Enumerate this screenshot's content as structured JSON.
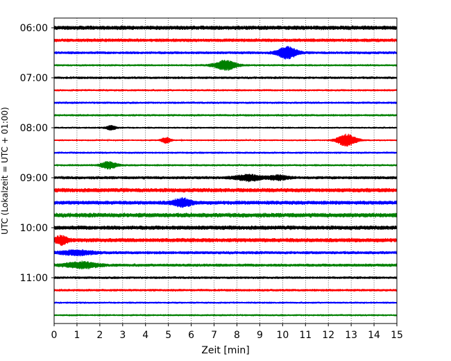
{
  "chart_data": {
    "type": "line",
    "title": "",
    "xlabel": "Zeit  [min]",
    "ylabel": "UTC (Lokalzeit = UTC + 01:00)",
    "xlim": [
      0,
      15
    ],
    "x_ticks": [
      "0",
      "1",
      "2",
      "3",
      "4",
      "5",
      "6",
      "7",
      "8",
      "9",
      "10",
      "11",
      "12",
      "13",
      "14",
      "15"
    ],
    "y_ticks": [
      {
        "label": "06:00",
        "trace_index": 0
      },
      {
        "label": "07:00",
        "trace_index": 4
      },
      {
        "label": "08:00",
        "trace_index": 8
      },
      {
        "label": "09:00",
        "trace_index": 12
      },
      {
        "label": "10:00",
        "trace_index": 16
      },
      {
        "label": "11:00",
        "trace_index": 20
      }
    ],
    "vertical_grid": true,
    "trace_interval_min": 15,
    "colors": [
      "#000000",
      "#ff0000",
      "#0000ff",
      "#008000"
    ],
    "traces": [
      {
        "amp": 0.3,
        "events": []
      },
      {
        "amp": 0.25,
        "events": []
      },
      {
        "amp": 0.2,
        "events": [
          {
            "t": 10.2,
            "a": 0.9,
            "w": 0.6
          }
        ]
      },
      {
        "amp": 0.15,
        "events": [
          {
            "t": 7.5,
            "a": 0.75,
            "w": 0.7
          }
        ]
      },
      {
        "amp": 0.18,
        "events": []
      },
      {
        "amp": 0.15,
        "events": []
      },
      {
        "amp": 0.16,
        "events": []
      },
      {
        "amp": 0.16,
        "events": []
      },
      {
        "amp": 0.13,
        "events": [
          {
            "t": 2.5,
            "a": 0.35,
            "w": 0.3
          }
        ]
      },
      {
        "amp": 0.12,
        "events": [
          {
            "t": 4.9,
            "a": 0.45,
            "w": 0.3
          },
          {
            "t": 12.8,
            "a": 0.95,
            "w": 0.6
          }
        ]
      },
      {
        "amp": 0.15,
        "events": []
      },
      {
        "amp": 0.15,
        "events": [
          {
            "t": 2.4,
            "a": 0.55,
            "w": 0.5
          }
        ]
      },
      {
        "amp": 0.22,
        "events": [
          {
            "t": 8.5,
            "a": 0.45,
            "w": 0.8
          },
          {
            "t": 9.8,
            "a": 0.35,
            "w": 0.6
          }
        ]
      },
      {
        "amp": 0.3,
        "events": []
      },
      {
        "amp": 0.28,
        "events": [
          {
            "t": 5.6,
            "a": 0.55,
            "w": 0.6
          }
        ]
      },
      {
        "amp": 0.32,
        "events": []
      },
      {
        "amp": 0.3,
        "events": []
      },
      {
        "amp": 0.3,
        "events": [
          {
            "t": 0.3,
            "a": 0.6,
            "w": 0.4
          }
        ]
      },
      {
        "amp": 0.22,
        "events": [
          {
            "t": 1.0,
            "a": 0.35,
            "w": 1.0
          }
        ]
      },
      {
        "amp": 0.22,
        "events": [
          {
            "t": 1.2,
            "a": 0.45,
            "w": 1.0
          }
        ]
      },
      {
        "amp": 0.18,
        "events": []
      },
      {
        "amp": 0.18,
        "events": []
      },
      {
        "amp": 0.14,
        "events": []
      },
      {
        "amp": 0.14,
        "events": []
      }
    ]
  }
}
